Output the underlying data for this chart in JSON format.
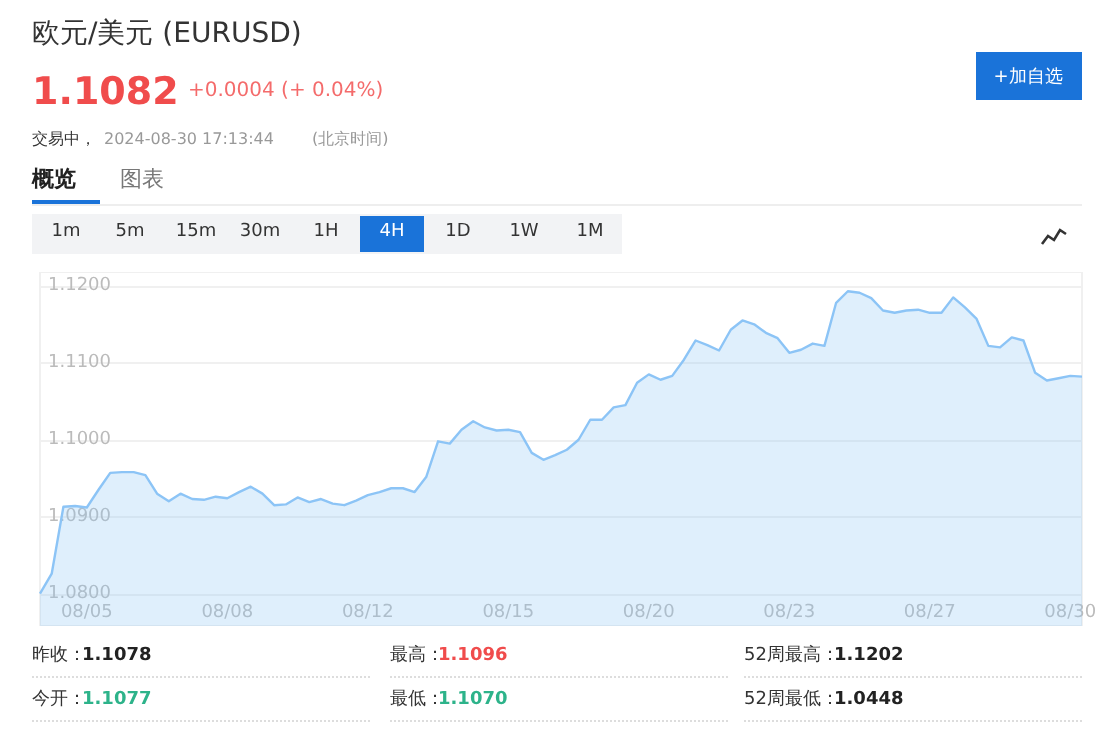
{
  "chart_data": {
    "type": "area",
    "title": "欧元/美元 (EURUSD)",
    "categories": [
      null,
      null,
      null,
      null,
      "08/05",
      null,
      null,
      null,
      null,
      null,
      null,
      null,
      null,
      null,
      null,
      null,
      "08/08",
      null,
      null,
      null,
      null,
      null,
      null,
      null,
      null,
      null,
      null,
      null,
      "08/12",
      null,
      null,
      null,
      null,
      null,
      null,
      null,
      null,
      null,
      null,
      null,
      "08/15",
      null,
      null,
      null,
      null,
      null,
      null,
      null,
      null,
      null,
      null,
      null,
      "08/20",
      null,
      null,
      null,
      null,
      null,
      null,
      null,
      null,
      null,
      null,
      null,
      "08/23",
      null,
      null,
      null,
      null,
      null,
      null,
      null,
      null,
      null,
      null,
      null,
      "08/27",
      null,
      null,
      null,
      null,
      null,
      null,
      null,
      null,
      null,
      null,
      null,
      "08/30",
      null
    ],
    "series": [
      {
        "color": "#8cc4f6",
        "values": [
          1.08,
          1.0826,
          1.0913,
          1.0914,
          1.0912,
          1.0935,
          1.0957,
          1.0958,
          1.0958,
          1.0954,
          1.093,
          1.092,
          1.093,
          1.0923,
          1.0922,
          1.0926,
          1.0924,
          1.0932,
          1.0939,
          1.093,
          1.0915,
          1.0916,
          1.0925,
          1.0919,
          1.0923,
          1.0917,
          1.0915,
          1.0921,
          1.0928,
          1.0932,
          1.0937,
          1.0937,
          1.0932,
          1.0952,
          1.0998,
          1.0995,
          1.1013,
          1.1024,
          1.1016,
          1.1012,
          1.1013,
          1.101,
          1.0983,
          1.0974,
          1.098,
          1.0987,
          1.1,
          1.1026,
          1.1026,
          1.1042,
          1.1045,
          1.1074,
          1.1085,
          1.1078,
          1.1083,
          1.1104,
          1.1129,
          1.1123,
          1.1116,
          1.1143,
          1.1155,
          1.115,
          1.1139,
          1.1132,
          1.1113,
          1.1117,
          1.1125,
          1.1122,
          1.1178,
          1.1193,
          1.1191,
          1.1184,
          1.1168,
          1.1165,
          1.1168,
          1.1169,
          1.1165,
          1.1165,
          1.1185,
          1.1172,
          1.1157,
          1.1122,
          1.112,
          1.1133,
          1.1129,
          1.1087,
          1.1077,
          1.108,
          1.1083,
          1.1082
        ]
      }
    ],
    "ylim": [
      1.0758,
      1.1218
    ],
    "yticks": [
      {
        "value": 1.08,
        "label": "1.0800"
      },
      {
        "value": 1.09,
        "label": "1.0900"
      },
      {
        "value": 1.1,
        "label": "1.1000"
      },
      {
        "value": 1.11,
        "label": "1.1100"
      },
      {
        "value": 1.12,
        "label": "1.1200"
      }
    ],
    "grid": "y",
    "annotations": [
      "1.1082",
      "+0.0004 (+ 0.04%)",
      "交易中，",
      "2024-08-30 17:13:44",
      "(北京时间)",
      "+加自选",
      "概览",
      "图表",
      "1m",
      "5m",
      "15m",
      "30m",
      "1H",
      "4H",
      "1D",
      "1W",
      "1M",
      "昨收：",
      "1.1078",
      "最高：",
      "1.1096",
      "52周最高：",
      "1.1202",
      "今开：",
      "1.1077",
      "最低：",
      "1.1070",
      "52周最低：",
      "1.0448"
    ]
  }
}
